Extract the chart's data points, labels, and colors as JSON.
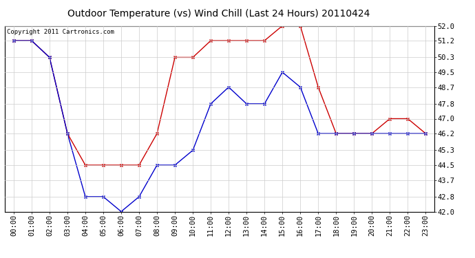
{
  "title": "Outdoor Temperature (vs) Wind Chill (Last 24 Hours) 20110424",
  "copyright": "Copyright 2011 Cartronics.com",
  "x_labels": [
    "00:00",
    "01:00",
    "02:00",
    "03:00",
    "04:00",
    "05:00",
    "06:00",
    "07:00",
    "08:00",
    "09:00",
    "10:00",
    "11:00",
    "12:00",
    "13:00",
    "14:00",
    "15:00",
    "16:00",
    "17:00",
    "18:00",
    "19:00",
    "20:00",
    "21:00",
    "22:00",
    "23:00"
  ],
  "red_data": [
    51.2,
    51.2,
    50.3,
    46.2,
    44.5,
    44.5,
    44.5,
    44.5,
    46.2,
    50.3,
    50.3,
    51.2,
    51.2,
    51.2,
    51.2,
    52.0,
    52.0,
    48.7,
    46.2,
    46.2,
    46.2,
    47.0,
    47.0,
    46.2
  ],
  "blue_data": [
    51.2,
    51.2,
    50.3,
    46.2,
    42.8,
    42.8,
    42.0,
    42.8,
    44.5,
    44.5,
    45.3,
    47.8,
    48.7,
    47.8,
    47.8,
    49.5,
    48.7,
    46.2,
    46.2,
    46.2,
    46.2,
    46.2,
    46.2,
    46.2
  ],
  "red_color": "#cc0000",
  "blue_color": "#0000cc",
  "ylim_min": 42.0,
  "ylim_max": 52.0,
  "yticks": [
    42.0,
    42.8,
    43.7,
    44.5,
    45.3,
    46.2,
    47.0,
    47.8,
    48.7,
    49.5,
    50.3,
    51.2,
    52.0
  ],
  "background_color": "#ffffff",
  "grid_color": "#cccccc",
  "title_fontsize": 10,
  "copyright_fontsize": 6.5,
  "tick_fontsize": 7.5
}
